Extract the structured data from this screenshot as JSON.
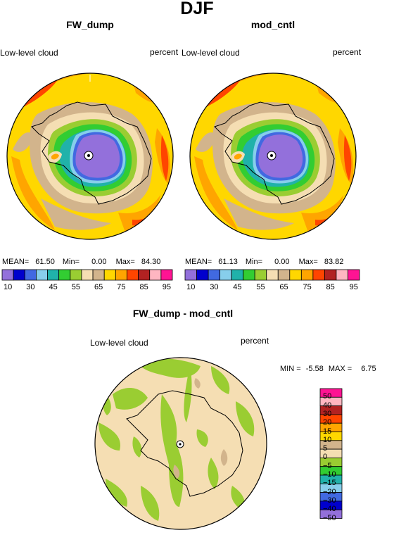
{
  "figure": {
    "title": "DJF"
  },
  "panels": [
    {
      "title": "FW_dump",
      "left_label": "Low-level cloud",
      "right_label": "percent",
      "stats": {
        "mean_label": "MEAN=",
        "mean": "61.50",
        "min_label": "Min=",
        "min": "0.00",
        "max_label": "Max=",
        "max": "84.30"
      }
    },
    {
      "title": "mod_cntl",
      "left_label": "Low-level cloud",
      "right_label": "percent",
      "stats": {
        "mean_label": "MEAN=",
        "mean": "61.13",
        "min_label": "Min=",
        "min": "0.00",
        "max_label": "Max=",
        "max": "83.82"
      }
    }
  ],
  "colorbar_top": {
    "colors": [
      "#9370db",
      "#0000cd",
      "#4169e1",
      "#87ceeb",
      "#20b2aa",
      "#32cd32",
      "#9acd32",
      "#f5deb3",
      "#d2b48c",
      "#ffd700",
      "#ffa500",
      "#ff4500",
      "#b22222",
      "#ffb6c1",
      "#ff1493"
    ],
    "labels": [
      "10",
      "30",
      "45",
      "55",
      "65",
      "75",
      "85",
      "95"
    ]
  },
  "diff_panel": {
    "title": "FW_dump - mod_cntl",
    "left_label": "Low-level cloud",
    "right_label": "percent",
    "min_label": "MIN =",
    "min": "-5.58",
    "max_label": "MAX =",
    "max": "6.75"
  },
  "colorbar_diff": {
    "colors": [
      "#9370db",
      "#0000cd",
      "#4169e1",
      "#87ceeb",
      "#20b2aa",
      "#32cd32",
      "#9acd32",
      "#f5deb3",
      "#d2b48c",
      "#ffd700",
      "#ffa500",
      "#ff4500",
      "#b22222",
      "#ffb6c1",
      "#ff1493"
    ],
    "labels": [
      "50",
      "40",
      "30",
      "20",
      "15",
      "10",
      "5",
      "0",
      "−5",
      "−10",
      "−15",
      "−20",
      "−30",
      "−40",
      "−50"
    ]
  }
}
